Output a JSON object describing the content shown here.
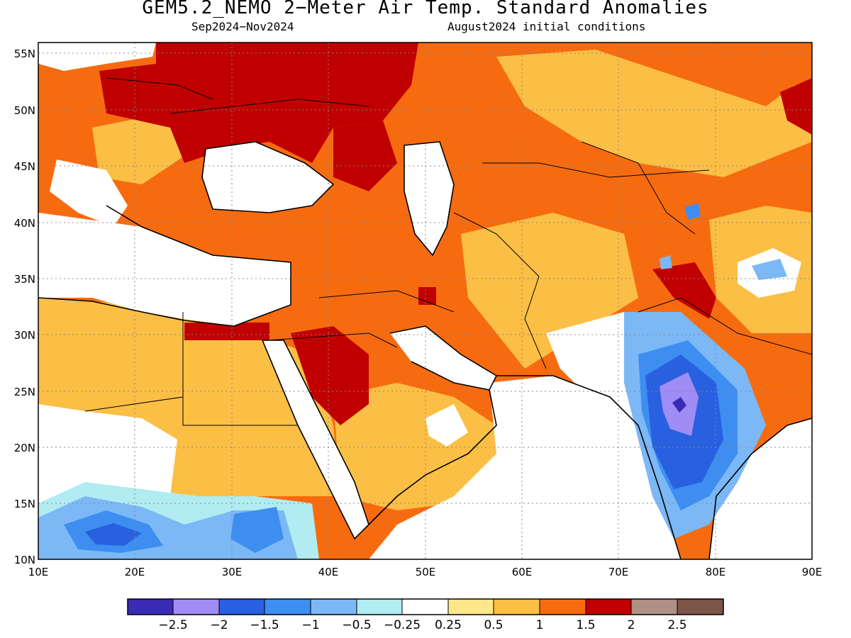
{
  "title": "GEM5.2_NEMO 2−Meter Air Temp. Standard Anomalies",
  "subtitle_left": "Sep2024−Nov2024",
  "subtitle_right": "August2024 initial conditions",
  "map": {
    "lon_range": [
      10,
      90
    ],
    "lat_range": [
      10,
      56
    ],
    "lon_ticks": [
      "10E",
      "20E",
      "30E",
      "40E",
      "50E",
      "60E",
      "70E",
      "80E",
      "90E"
    ],
    "lat_ticks": [
      "10N",
      "15N",
      "20N",
      "25N",
      "30N",
      "35N",
      "40N",
      "45N",
      "50N",
      "55N"
    ],
    "grid": "dotted",
    "ocean_color": "#ffffff"
  },
  "colorbar": {
    "colors": [
      "#3a2bb5",
      "#a08cf5",
      "#2860e0",
      "#3d8ef0",
      "#7bb8f5",
      "#b0ecf2",
      "#ffffff",
      "#fde78a",
      "#fbbf45",
      "#f76b10",
      "#c00000",
      "#b08f84",
      "#7a5548"
    ],
    "labels": [
      "−2.5",
      "−2",
      "−1.5",
      "−1",
      "−0.5",
      "−0.25",
      "0.25",
      "0.5",
      "1",
      "1.5",
      "2",
      "2.5"
    ]
  }
}
